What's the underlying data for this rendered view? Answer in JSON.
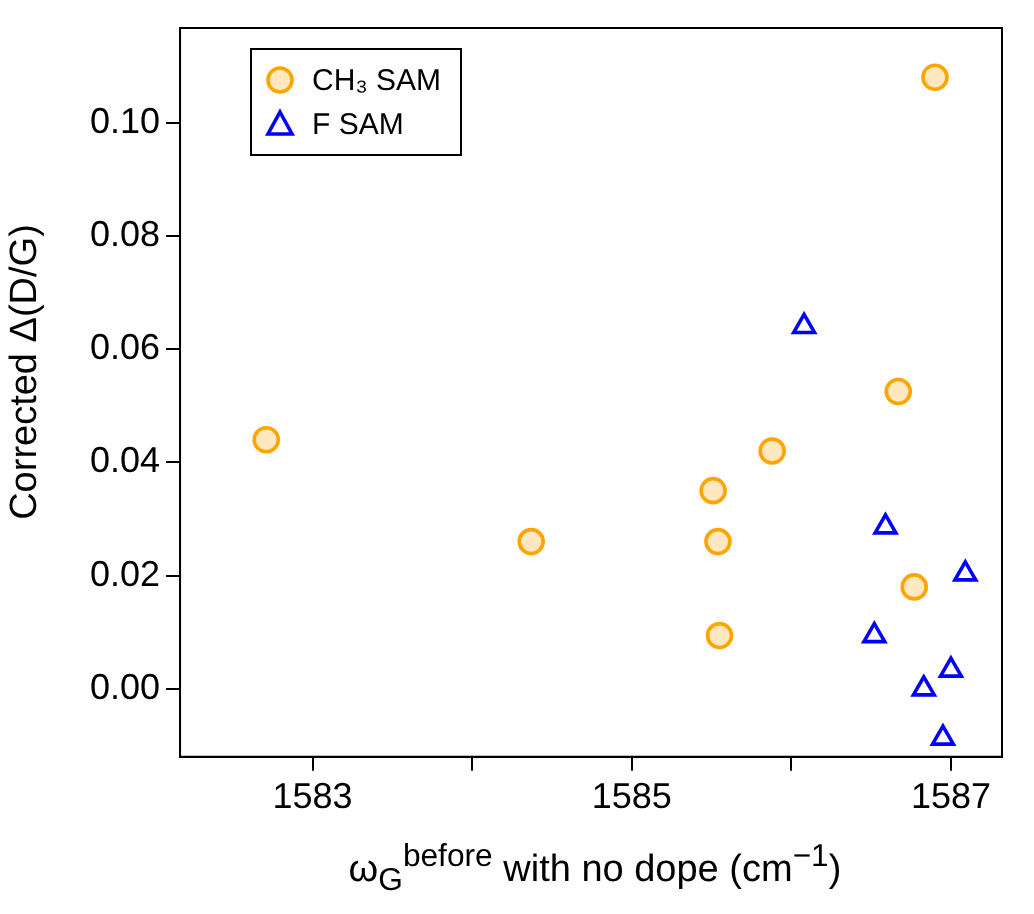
{
  "chart_data": {
    "type": "scatter",
    "xlabel": "ω$_{G}$$^{before}$ with no dope (cm$^{−1}$)",
    "ylabel": "Corrected Δ(D/G)",
    "xlim": [
      1582.17,
      1587.32
    ],
    "ylim": [
      -0.012,
      0.1167
    ],
    "xticks": [
      1583,
      {
        "value": 1584,
        "label": null
      },
      1585,
      {
        "value": 1586,
        "label": null
      },
      1587
    ],
    "yticks": [
      {
        "value": 0,
        "label": "0.00"
      },
      {
        "value": 0.02,
        "label": "0.02"
      },
      {
        "value": 0.04,
        "label": "0.04"
      },
      {
        "value": 0.06,
        "label": "0.06"
      },
      {
        "value": 0.08,
        "label": "0.08"
      },
      {
        "value": 0.1,
        "label": "0.10"
      }
    ],
    "grid": false,
    "legend": "top left",
    "series": [
      {
        "name": "CH₃ SAM",
        "color": "#ffa500",
        "marker": "circle",
        "x": [
          1582.71,
          1584.37,
          1585.51,
          1585.54,
          1585.55,
          1585.88,
          1586.67,
          1586.9,
          1586.77
        ],
        "values": [
          0.044,
          0.026,
          0.035,
          0.026,
          0.0094,
          0.042,
          0.0525,
          0.108,
          0.018
        ]
      },
      {
        "name": "F SAM",
        "color": "#0000ff",
        "marker": "triangle",
        "x": [
          1586.08,
          1586.59,
          1586.52,
          1586.83,
          1587.0,
          1587.09,
          1586.95
        ],
        "values": [
          0.064,
          0.0286,
          0.0094,
          0.0,
          0.0033,
          0.0203,
          -0.0087
        ]
      }
    ]
  }
}
